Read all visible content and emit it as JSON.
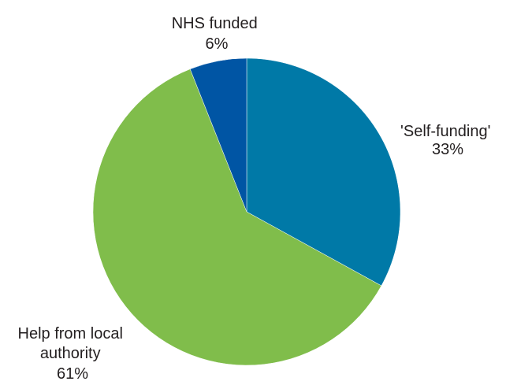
{
  "chart_data": {
    "type": "pie",
    "title": "",
    "start_angle_deg": 0,
    "direction": "clockwise",
    "slices": [
      {
        "label_lines": [
          "'Self-funding'"
        ],
        "value": 33,
        "value_label": "33%",
        "color": "#0079a7"
      },
      {
        "label_lines": [
          "Help from local",
          "authority"
        ],
        "value": 61,
        "value_label": "61%",
        "color": "#80bd4b"
      },
      {
        "label_lines": [
          "NHS funded"
        ],
        "value": 6,
        "value_label": "6%",
        "color": "#0055a4"
      }
    ]
  }
}
